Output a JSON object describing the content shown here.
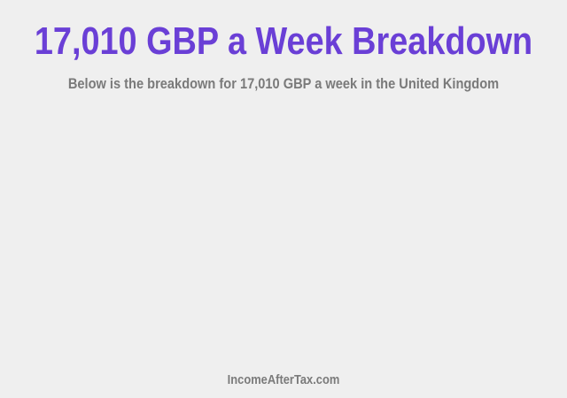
{
  "header": {
    "title": "17,010 GBP a Week Breakdown",
    "subtitle": "Below is the breakdown for 17,010 GBP a week in the United Kingdom"
  },
  "footer": {
    "site": "IncomeAfterTax.com"
  },
  "colors": {
    "title": "#6a3fd6",
    "text": "#7a7a7a",
    "background": "#efefef"
  }
}
